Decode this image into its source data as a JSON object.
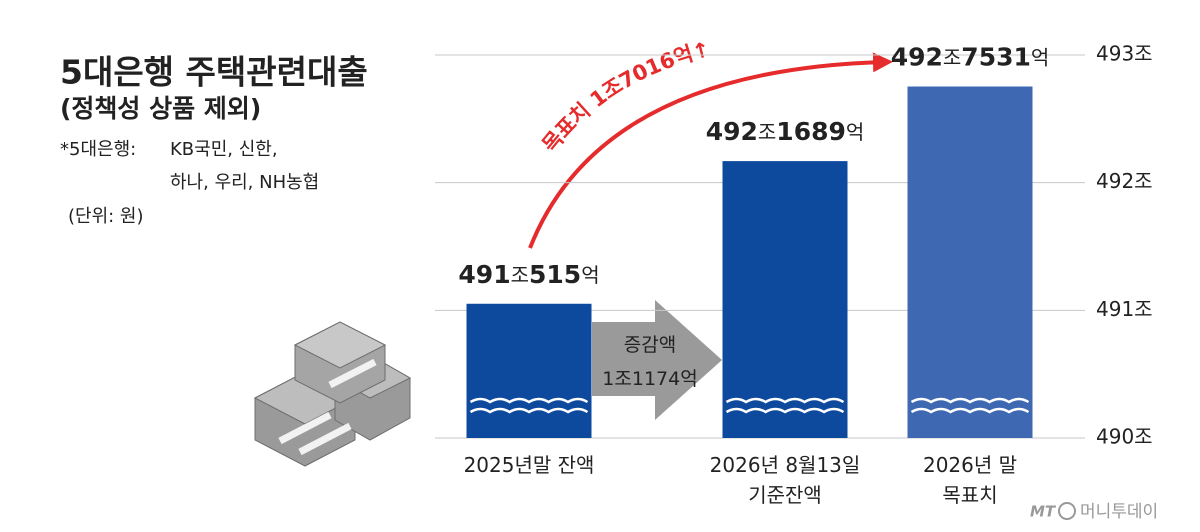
{
  "chart_data": {
    "type": "bar",
    "title": "5대은행 주택관련대출",
    "subtitle": "(정책성 상품 제외)",
    "note_label": "*5대은행:",
    "note": "KB국민, 신한,\n하나, 우리, NH농협",
    "unit": "(단위: 원)",
    "categories": [
      "2025년말 잔액",
      "2026년 8월13일\n기준잔액",
      "2026년 말\n목표치"
    ],
    "values": [
      491.0515,
      492.1689,
      492.7531
    ],
    "value_labels": [
      "491조515억",
      "492조1689억",
      "492조7531억"
    ],
    "colors": [
      "#0d4a9e",
      "#0d4a9e",
      "#3f68b2"
    ],
    "ylim": [
      490,
      493
    ],
    "yticks": [
      {
        "value": 490,
        "label": "490조"
      },
      {
        "value": 491,
        "label": "491조"
      },
      {
        "value": 492,
        "label": "492조"
      },
      {
        "value": 493,
        "label": "493조"
      }
    ],
    "grid": true,
    "annotations": {
      "increase": "증감액\n1조1174억",
      "target": "목표치 1조7016억↑"
    },
    "source_logo": "MT",
    "source": "머니투데이"
  }
}
